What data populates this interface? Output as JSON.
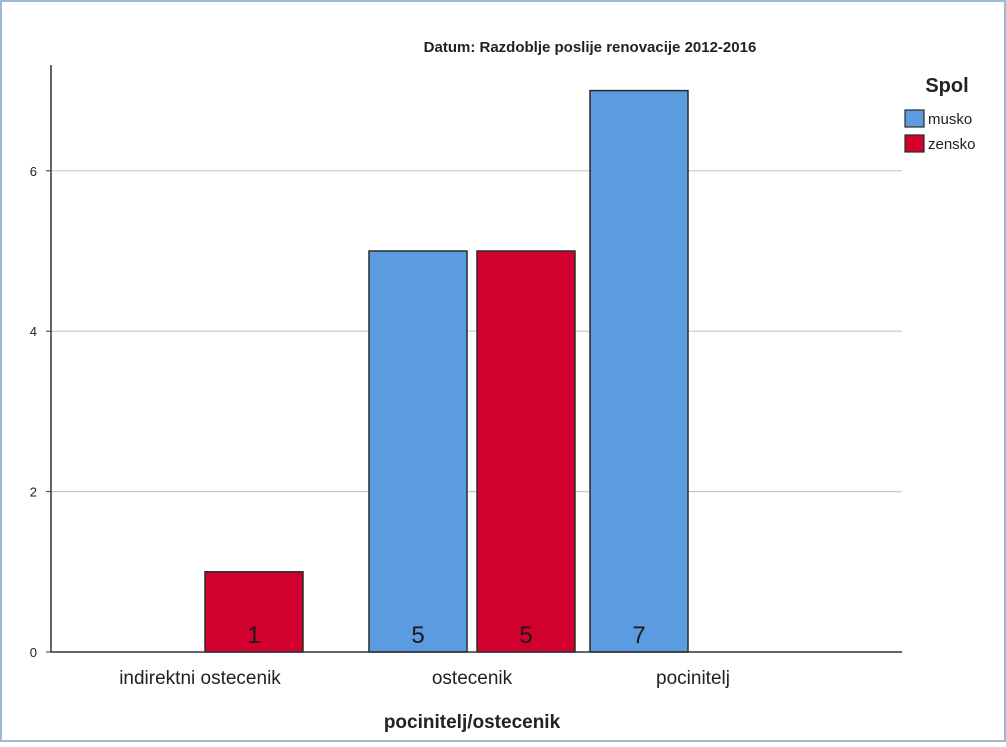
{
  "chart_data": {
    "type": "bar",
    "title": "Datum: Razdoblje poslije renovacije 2012-2016",
    "xlabel": "pocinitelj/ostecenik",
    "ylabel": "",
    "ylim": [
      0,
      7.5
    ],
    "yticks": [
      0,
      2,
      4,
      6
    ],
    "grid": true,
    "legend_title": "Spol",
    "legend_position": "top-right",
    "categories": [
      "indirektni ostecenik",
      "ostecenik",
      "pocinitelj"
    ],
    "series": [
      {
        "name": "musko",
        "color": "#5b9be0",
        "values": [
          null,
          5,
          7
        ]
      },
      {
        "name": "zensko",
        "color": "#d2002c",
        "values": [
          1,
          5,
          null
        ]
      }
    ]
  }
}
